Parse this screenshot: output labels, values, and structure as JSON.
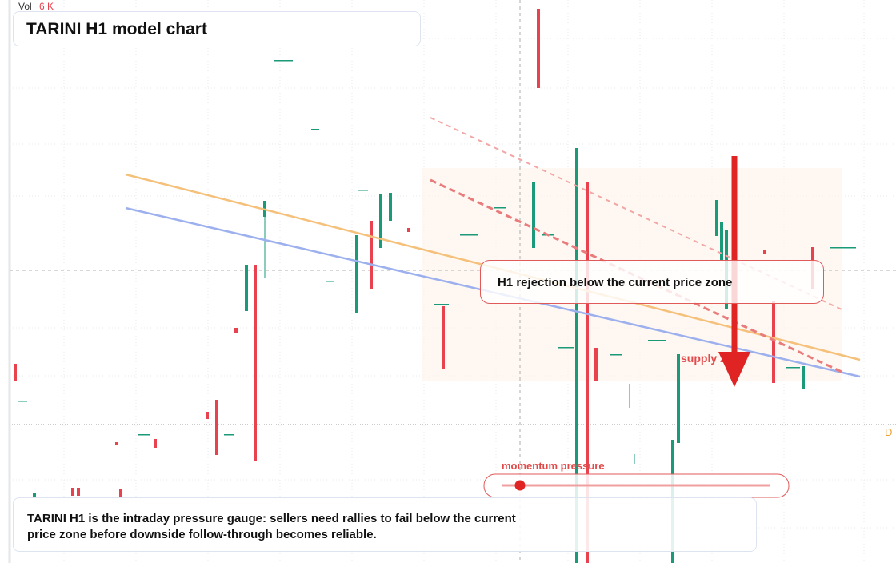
{
  "header": {
    "vol_label": "Vol",
    "vol_value": "6 K",
    "title": "TARINI H1 model chart"
  },
  "annotations": {
    "rejection": "H1 rejection below the current price zone",
    "supply": "supply zone",
    "momentum": "momentum pressure",
    "edge_marker": "D"
  },
  "caption": "TARINI H1 is the intraday pressure gauge: sellers need rallies to fail below the current price zone before downside follow-through becomes reliable."
}
